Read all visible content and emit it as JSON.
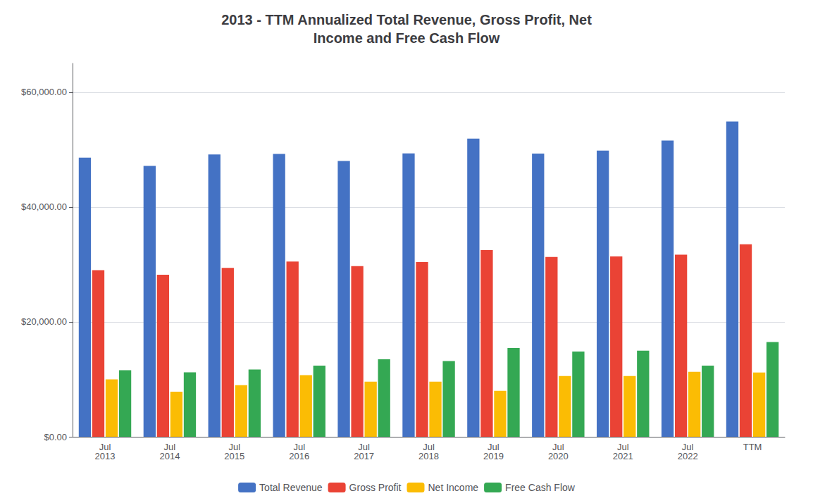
{
  "chart_data": {
    "type": "bar",
    "title": "2013 - TTM Annualized Total Revenue, Gross Profit, Net\nIncome and Free Cash Flow",
    "categories": [
      "Jul\n2013",
      "Jul\n2014",
      "Jul\n2015",
      "Jul\n2016",
      "Jul\n2017",
      "Jul\n2018",
      "Jul\n2019",
      "Jul\n2020",
      "Jul\n2021",
      "Jul\n2022",
      "TTM"
    ],
    "series": [
      {
        "name": "Total Revenue",
        "color": "#4472C4",
        "values": [
          48607,
          47142,
          49161,
          49247,
          48005,
          49330,
          51904,
          49301,
          49818,
          51557,
          54880
        ]
      },
      {
        "name": "Gross Profit",
        "color": "#EA4335",
        "values": [
          29000,
          28200,
          29400,
          30500,
          29700,
          30400,
          32500,
          31300,
          31400,
          31700,
          33500
        ]
      },
      {
        "name": "Net Income",
        "color": "#FBBC04",
        "values": [
          9983,
          7853,
          8981,
          10739,
          9609,
          9608,
          8011,
          10591,
          10591,
          11312,
          11197
        ]
      },
      {
        "name": "Free Cash Flow",
        "color": "#34A853",
        "values": [
          11595,
          11229,
          11720,
          12390,
          13485,
          13177,
          15463,
          14844,
          14993,
          12386,
          16500
        ]
      }
    ],
    "ylim": [
      0,
      65000
    ],
    "yticks": [
      {
        "value": 0,
        "label": "$0.00"
      },
      {
        "value": 20000,
        "label": "$20,000.00"
      },
      {
        "value": 40000,
        "label": "$40,000.00"
      },
      {
        "value": 60000,
        "label": "$60,000.00"
      }
    ],
    "grid": true,
    "legend": "bottom"
  }
}
